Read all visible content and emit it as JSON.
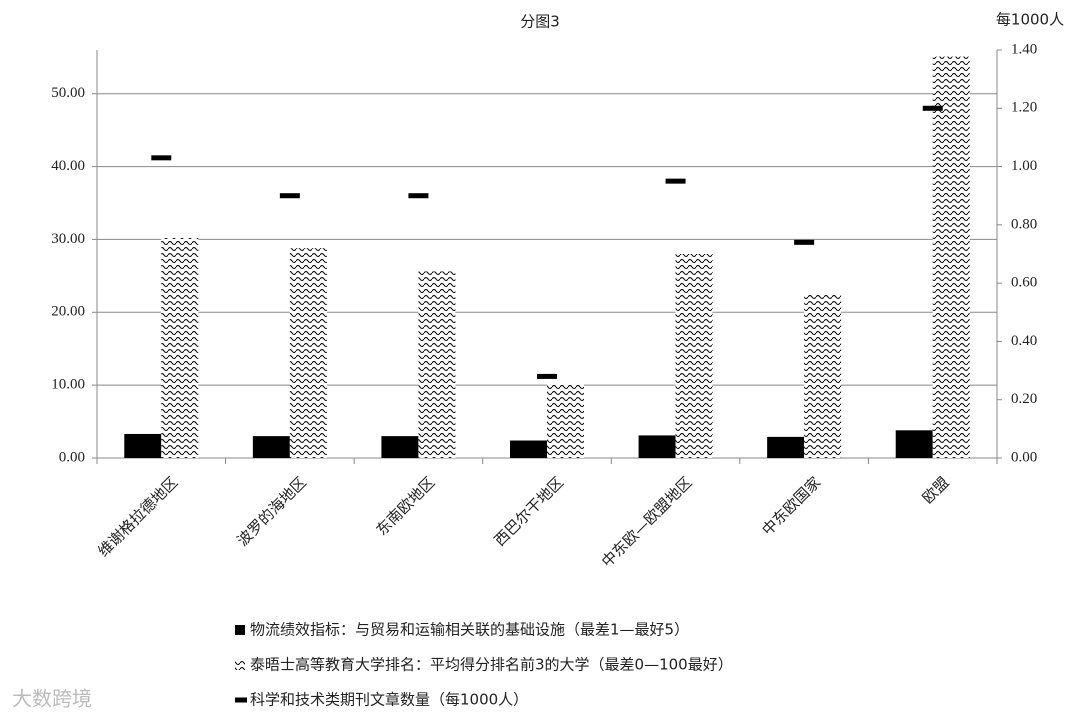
{
  "chart_data": {
    "type": "bar",
    "title": "分图3",
    "y2label": "每1000人",
    "categories": [
      "维谢格拉德地区",
      "波罗的海地区",
      "东南欧地区",
      "西巴尔干地区",
      "中东欧—欧盟地区",
      "中东欧国家",
      "欧盟"
    ],
    "series": [
      {
        "name": "物流绩效指标：与贸易和运输相关联的基础设施（最差1—最好5）",
        "color": "#000000",
        "values": [
          3.3,
          3.0,
          3.0,
          2.4,
          3.1,
          2.9,
          3.8
        ]
      },
      {
        "name": "泰晤士高等教育大学排名：平均得分排名前3的大学（最差0—100最好）",
        "color": "#000000",
        "pattern": "wave",
        "values": [
          30.2,
          28.8,
          25.6,
          10.2,
          28.0,
          22.4,
          55.1
        ]
      },
      {
        "name": "科学和技术类期刊文章数量（每1000人）",
        "color": "#000000",
        "axis": "y2",
        "values": [
          1.03,
          0.9,
          0.9,
          0.28,
          0.95,
          0.74,
          1.2
        ]
      }
    ],
    "ylim": [
      0,
      56
    ],
    "yticks": [
      {
        "value": 0,
        "label": "0.00"
      },
      {
        "value": 10,
        "label": "10.00"
      },
      {
        "value": 20,
        "label": "20.00"
      },
      {
        "value": 30,
        "label": "30.00"
      },
      {
        "value": 40,
        "label": "40.00"
      },
      {
        "value": 50,
        "label": "50.00"
      }
    ],
    "y2lim": [
      0,
      1.4
    ],
    "y2ticks": [
      {
        "value": 0,
        "label": "0.00"
      },
      {
        "value": 0.2,
        "label": "0.20"
      },
      {
        "value": 0.4,
        "label": "0.40"
      },
      {
        "value": 0.6,
        "label": "0.60"
      },
      {
        "value": 0.8,
        "label": "0.80"
      },
      {
        "value": 1.0,
        "label": "1.00"
      },
      {
        "value": 1.2,
        "label": "1.20"
      },
      {
        "value": 1.4,
        "label": "1.40"
      }
    ],
    "grid": true
  },
  "watermark": "大数跨境"
}
